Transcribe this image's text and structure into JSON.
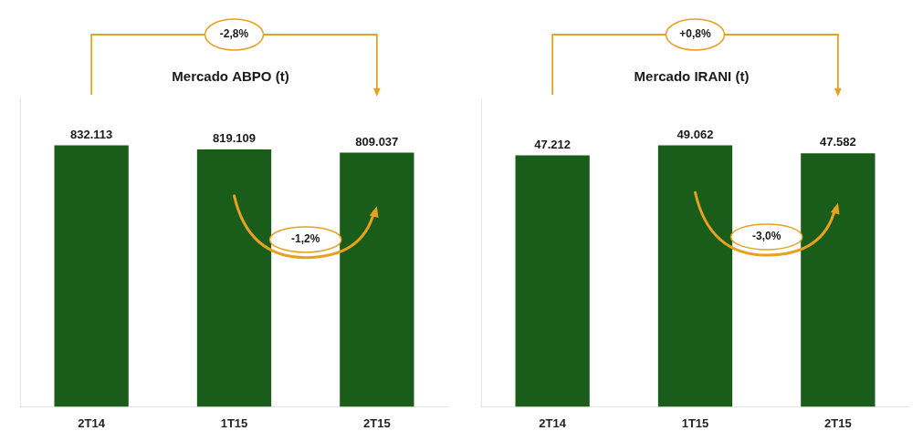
{
  "chart_data": [
    {
      "type": "bar",
      "title": "Mercado ABPO (t)",
      "categories": [
        "2T14",
        "1T15",
        "2T15"
      ],
      "values": [
        832113,
        819109,
        809037
      ],
      "value_labels": [
        "832.113",
        "819.109",
        "809.037"
      ],
      "data_labels": true,
      "color": "#1a5c1a",
      "ylim": [
        0,
        981893.34
      ],
      "grid": false,
      "tick_labels": "x",
      "annotations": [
        {
          "text": "-2,8%",
          "from": "2T14",
          "to": "2T15",
          "color": "#e8a020"
        },
        {
          "text": "-1,2%",
          "from": "1T15",
          "to": "2T15",
          "color": "#e8a020"
        }
      ]
    },
    {
      "type": "bar",
      "title": "Mercado IRANI (t)",
      "categories": [
        "2T14",
        "1T15",
        "2T15"
      ],
      "values": [
        47212,
        49062,
        47582
      ],
      "value_labels": [
        "47.212",
        "49.062",
        "47.582"
      ],
      "data_labels": true,
      "color": "#1a5c1a",
      "ylim": [
        0,
        57893.16
      ],
      "grid": false,
      "tick_labels": "x",
      "annotations": [
        {
          "text": "+0,8%",
          "from": "2T14",
          "to": "2T15",
          "color": "#e8a020"
        },
        {
          "text": "-3,0%",
          "from": "1T15",
          "to": "2T15",
          "color": "#e8a020"
        }
      ]
    }
  ]
}
